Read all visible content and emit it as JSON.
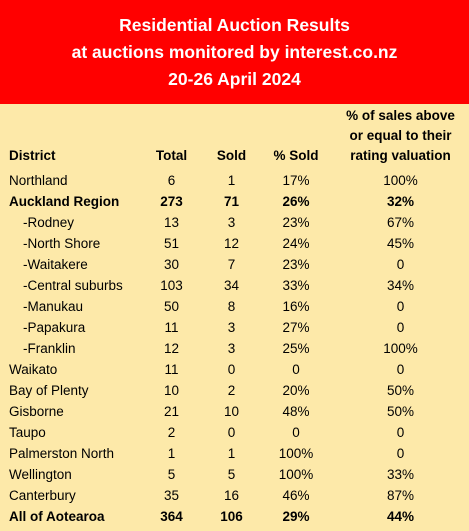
{
  "banner": {
    "line1": "Residential Auction Results",
    "line2": "at auctions monitored by interest.co.nz",
    "line3": "20-26 April 2024"
  },
  "headers": {
    "district": "District",
    "total": "Total",
    "sold": "Sold",
    "pct_sold": "% Sold",
    "rv_line1": "% of sales above",
    "rv_line2": "or equal to their",
    "rv_line3": "rating valuation"
  },
  "rows": [
    {
      "district": "Northland",
      "total": "6",
      "sold": "1",
      "pct_sold": "17%",
      "rv": "100%"
    },
    {
      "district": "Auckland Region",
      "total": "273",
      "sold": "71",
      "pct_sold": "26%",
      "rv": "32%"
    },
    {
      "district": "-Rodney",
      "total": "13",
      "sold": "3",
      "pct_sold": "23%",
      "rv": "67%"
    },
    {
      "district": "-North Shore",
      "total": "51",
      "sold": "12",
      "pct_sold": "24%",
      "rv": "45%"
    },
    {
      "district": "-Waitakere",
      "total": "30",
      "sold": "7",
      "pct_sold": "23%",
      "rv": "0"
    },
    {
      "district": "-Central suburbs",
      "total": "103",
      "sold": "34",
      "pct_sold": "33%",
      "rv": "34%"
    },
    {
      "district": "-Manukau",
      "total": "50",
      "sold": "8",
      "pct_sold": "16%",
      "rv": "0"
    },
    {
      "district": "-Papakura",
      "total": "11",
      "sold": "3",
      "pct_sold": "27%",
      "rv": "0"
    },
    {
      "district": "-Franklin",
      "total": "12",
      "sold": "3",
      "pct_sold": "25%",
      "rv": "100%"
    },
    {
      "district": "Waikato",
      "total": "11",
      "sold": "0",
      "pct_sold": "0",
      "rv": "0"
    },
    {
      "district": "Bay of Plenty",
      "total": "10",
      "sold": "2",
      "pct_sold": "20%",
      "rv": "50%"
    },
    {
      "district": "Gisborne",
      "total": "21",
      "sold": "10",
      "pct_sold": "48%",
      "rv": "50%"
    },
    {
      "district": "Taupo",
      "total": "2",
      "sold": "0",
      "pct_sold": "0",
      "rv": "0"
    },
    {
      "district": "Palmerston North",
      "total": "1",
      "sold": "1",
      "pct_sold": "100%",
      "rv": "0"
    },
    {
      "district": "Wellington",
      "total": "5",
      "sold": "5",
      "pct_sold": "100%",
      "rv": "33%"
    },
    {
      "district": "Canterbury",
      "total": "35",
      "sold": "16",
      "pct_sold": "46%",
      "rv": "87%"
    },
    {
      "district": "All of Aotearoa",
      "total": "364",
      "sold": "106",
      "pct_sold": "29%",
      "rv": "44%"
    }
  ],
  "colors": {
    "banner_bg": "#ff0000",
    "banner_text": "#ffffff",
    "table_bg": "#fde9a9"
  }
}
